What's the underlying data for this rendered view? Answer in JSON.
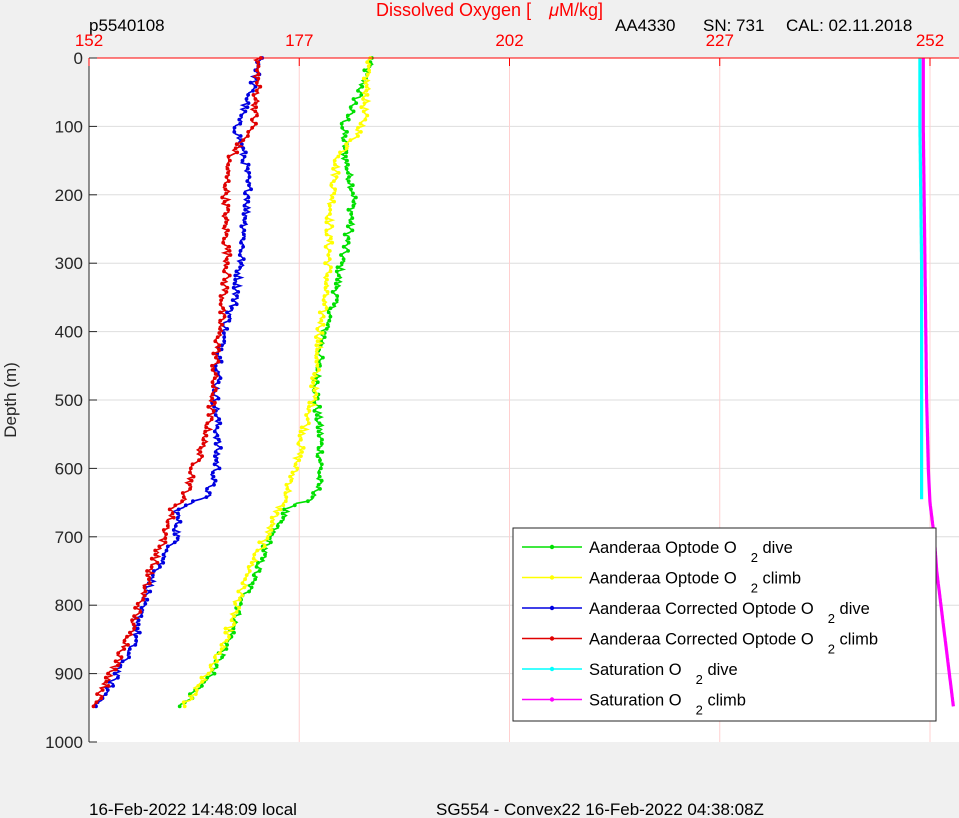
{
  "header": {
    "left_id": "p5540108",
    "title_prefix": "Dissolved Oxygen [",
    "title_mu": "μ",
    "title_unit": "M/kg]",
    "sensor": "AA4330",
    "serial": "SN: 731",
    "cal": "CAL: 02.11.2018"
  },
  "footer": {
    "local_time": "16-Feb-2022 14:48:09 local",
    "mission": "SG554 - Convex22 16-Feb-2022 04:38:08Z"
  },
  "colors": {
    "background": "#f0f0f0",
    "axes": "#ffffff",
    "accent": "#ff0000",
    "grid": "#dcdcdc",
    "green": "#00e000",
    "yellow": "#ffff00",
    "blue": "#0000e0",
    "red": "#e00000",
    "cyan": "#00ffff",
    "magenta": "#ff00ff"
  },
  "chart_data": {
    "type": "scatter",
    "ylabel": "Depth (m)",
    "xlabel": "Dissolved Oxygen [μM/kg]",
    "xlim": [
      152,
      255
    ],
    "ylim": [
      0,
      1000
    ],
    "y_reversed": true,
    "x_axis_position": "top",
    "x_ticks": [
      152,
      177,
      202,
      227,
      252
    ],
    "y_ticks": [
      0,
      100,
      200,
      300,
      400,
      500,
      600,
      700,
      800,
      900,
      1000
    ],
    "grid": true,
    "legend_position": "lower-right",
    "series": [
      {
        "name": "Aanderaa Optode O2 dive",
        "color": "#00e000",
        "depth": [
          0,
          50,
          100,
          150,
          200,
          250,
          300,
          350,
          400,
          450,
          500,
          550,
          600,
          640,
          660,
          700,
          750,
          800,
          850,
          900,
          950
        ],
        "oxygen": [
          185.5,
          184.2,
          182.2,
          182.5,
          183.5,
          183.0,
          182.0,
          181.3,
          180.0,
          179.2,
          179.0,
          179.5,
          179.5,
          179.0,
          175.5,
          173.5,
          172.0,
          170.0,
          168.7,
          166.5,
          163.0
        ]
      },
      {
        "name": "Aanderaa Optode O2 climb",
        "color": "#ffff00",
        "depth": [
          0,
          50,
          100,
          150,
          200,
          250,
          300,
          350,
          400,
          450,
          500,
          550,
          600,
          640,
          660,
          700,
          750,
          800,
          850,
          900,
          950
        ],
        "oxygen": [
          185.0,
          185.0,
          184.5,
          181.5,
          181.0,
          180.5,
          180.5,
          180.0,
          179.5,
          179.0,
          178.7,
          177.5,
          176.5,
          175.5,
          174.5,
          173.0,
          171.0,
          169.5,
          168.3,
          166.0,
          163.2
        ]
      },
      {
        "name": "Aanderaa Corrected Optode O2 dive",
        "color": "#0000e0",
        "depth": [
          0,
          50,
          100,
          150,
          200,
          250,
          300,
          350,
          400,
          450,
          500,
          550,
          600,
          640,
          660,
          700,
          750,
          800,
          850,
          900,
          950
        ],
        "oxygen": [
          172.5,
          171.2,
          169.5,
          170.5,
          171.0,
          170.5,
          170.0,
          169.5,
          168.0,
          167.5,
          167.0,
          167.3,
          167.2,
          166.0,
          162.5,
          162.5,
          160.0,
          158.2,
          157.5,
          155.3,
          153.0
        ]
      },
      {
        "name": "Aanderaa Corrected Optode O2 climb",
        "color": "#e00000",
        "depth": [
          0,
          50,
          100,
          150,
          200,
          250,
          300,
          350,
          400,
          450,
          500,
          550,
          600,
          640,
          660,
          700,
          750,
          800,
          850,
          900,
          950
        ],
        "oxygen": [
          172.0,
          172.0,
          171.5,
          168.5,
          168.3,
          168.2,
          168.5,
          168.0,
          167.5,
          167.0,
          166.7,
          166.0,
          164.5,
          163.5,
          162.0,
          161.0,
          159.3,
          158.0,
          156.7,
          154.7,
          152.5
        ]
      },
      {
        "name": "Saturation O2 dive",
        "color": "#00ffff",
        "depth": [
          0,
          100,
          200,
          300,
          400,
          500,
          600,
          645
        ],
        "oxygen": [
          250.8,
          250.8,
          250.9,
          251.0,
          251.0,
          251.0,
          251.0,
          251.0
        ]
      },
      {
        "name": "Saturation O2 climb",
        "color": "#ff00ff",
        "depth": [
          0,
          100,
          200,
          300,
          400,
          500,
          600,
          650,
          700,
          750,
          800,
          850,
          900,
          950
        ],
        "oxygen": [
          251.2,
          251.2,
          251.3,
          251.4,
          251.5,
          251.6,
          251.8,
          252.0,
          252.5,
          252.8,
          253.3,
          253.8,
          254.3,
          254.8
        ]
      }
    ]
  },
  "legend": [
    {
      "pre": "Aanderaa Optode O",
      "sub": "2",
      "post": "dive",
      "color": "#00e000"
    },
    {
      "pre": "Aanderaa Optode O",
      "sub": "2",
      "post": "climb",
      "color": "#ffff00"
    },
    {
      "pre": "Aanderaa Corrected Optode O",
      "sub": "2",
      "post": "dive",
      "color": "#0000e0"
    },
    {
      "pre": "Aanderaa Corrected Optode O",
      "sub": "2",
      "post": "climb",
      "color": "#e00000"
    },
    {
      "pre": "Saturation O",
      "sub": "2",
      "post": "dive",
      "color": "#00ffff"
    },
    {
      "pre": "Saturation O",
      "sub": "2",
      "post": "climb",
      "color": "#ff00ff"
    }
  ]
}
